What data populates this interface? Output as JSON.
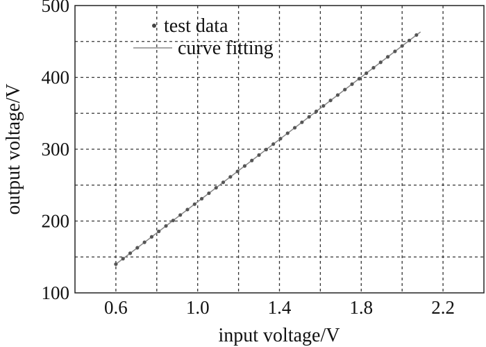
{
  "chart_data": {
    "type": "scatter",
    "title": "",
    "xlabel": "input voltage/V",
    "ylabel": "output voltage/V",
    "xlim": [
      0.4,
      2.4
    ],
    "ylim": [
      100,
      500
    ],
    "xticks": [
      0.6,
      1.0,
      1.4,
      1.8,
      2.2
    ],
    "xtick_labels": [
      "0.6",
      "1.0",
      "1.4",
      "1.8",
      "2.2"
    ],
    "yticks": [
      100,
      200,
      300,
      400,
      500
    ],
    "ytick_labels": [
      "100",
      "200",
      "300",
      "400",
      "500"
    ],
    "x_grid_step": 0.2,
    "y_grid_step": 50,
    "grid": true,
    "legend_position": "top-left",
    "series": [
      {
        "name": "test data",
        "kind": "scatter",
        "color": "#555555",
        "x": [
          0.6,
          0.635,
          0.67,
          0.705,
          0.74,
          0.775,
          0.81,
          0.845,
          0.88,
          0.915,
          0.95,
          0.985,
          1.02,
          1.055,
          1.09,
          1.125,
          1.16,
          1.195,
          1.23,
          1.265,
          1.3,
          1.335,
          1.37,
          1.405,
          1.44,
          1.475,
          1.51,
          1.545,
          1.58,
          1.615,
          1.65,
          1.685,
          1.72,
          1.755,
          1.79,
          1.825,
          1.86,
          1.895,
          1.93,
          1.965,
          2.0,
          2.035,
          2.07
        ],
        "y": [
          140.0,
          147.6,
          155.2,
          162.8,
          170.4,
          178.0,
          185.6,
          193.2,
          200.8,
          208.4,
          216.0,
          223.5,
          231.1,
          238.7,
          246.3,
          253.9,
          261.5,
          269.1,
          276.7,
          284.3,
          291.9,
          299.5,
          307.1,
          314.7,
          322.3,
          329.9,
          337.5,
          345.1,
          352.7,
          360.3,
          367.9,
          375.4,
          383.0,
          390.6,
          398.2,
          405.8,
          413.4,
          421.0,
          428.6,
          436.2,
          443.8,
          451.4,
          459.0
        ]
      },
      {
        "name": "curve fitting",
        "kind": "line",
        "color": "#888888",
        "x": [
          0.6,
          2.09
        ],
        "y": [
          140.0,
          463.3
        ]
      }
    ]
  }
}
